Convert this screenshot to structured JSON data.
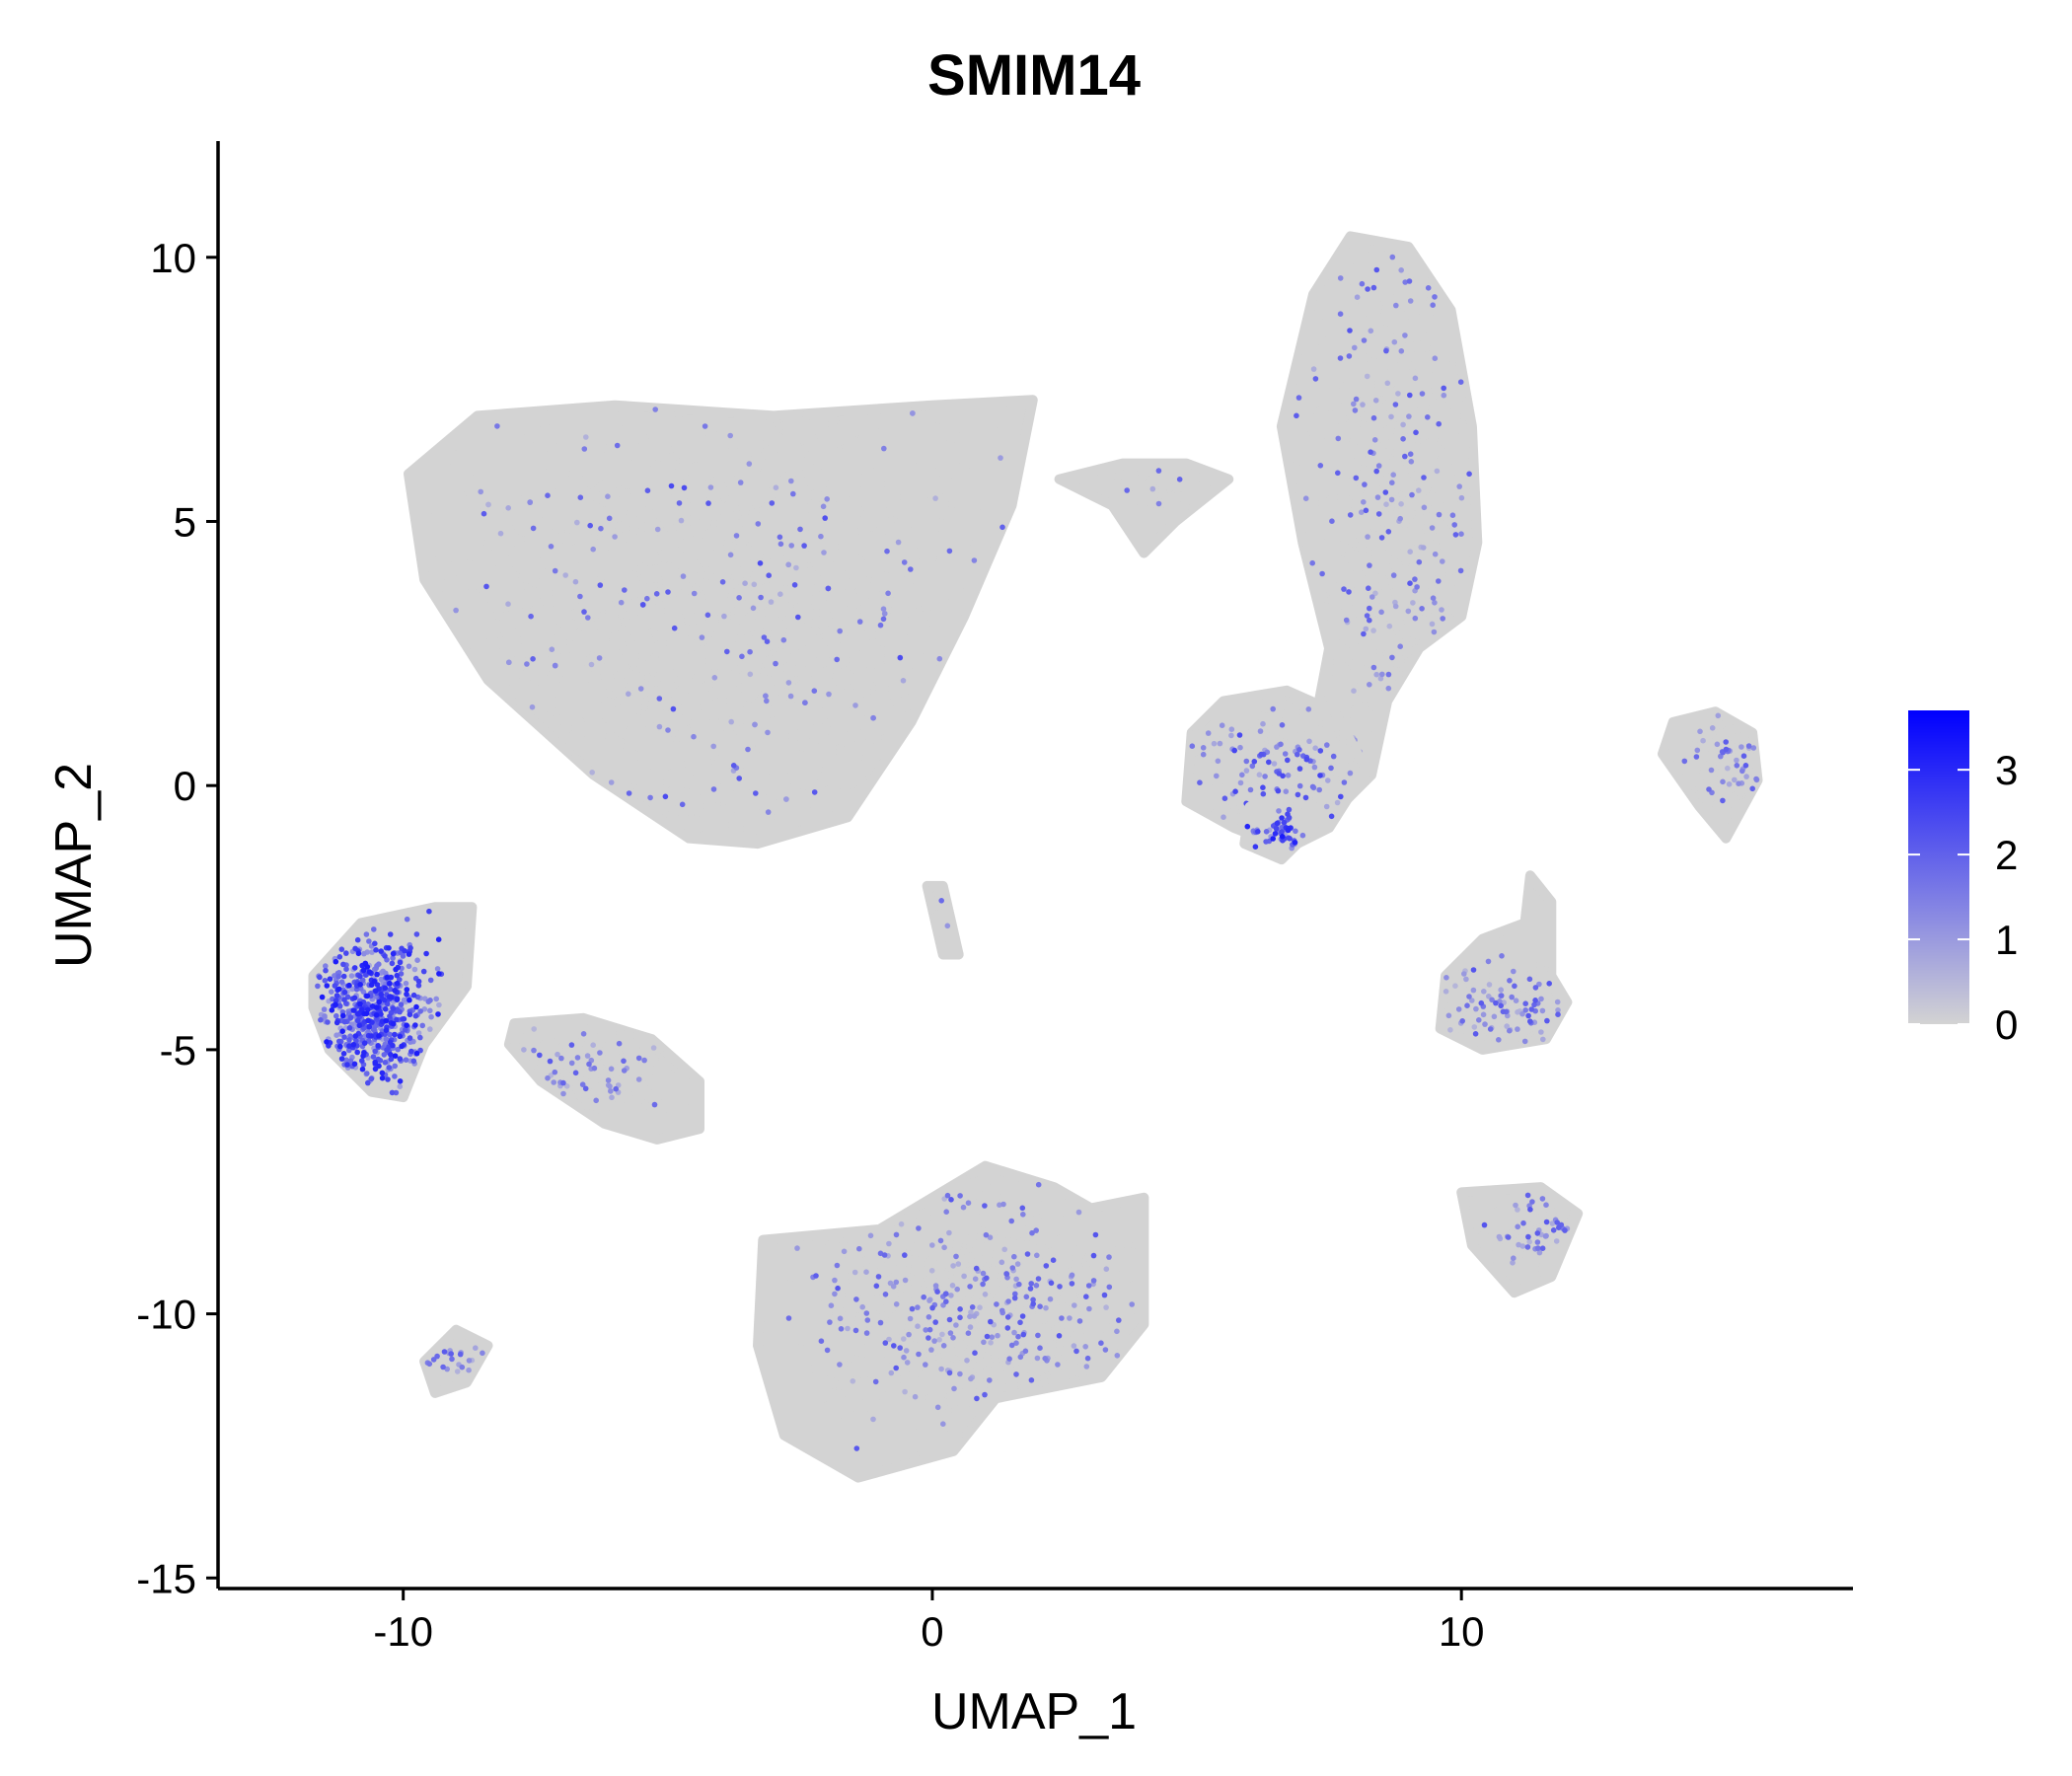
{
  "chart_data": {
    "type": "scatter",
    "title": "SMIM14",
    "xlabel": "UMAP_1",
    "ylabel": "UMAP_2",
    "xlim": [
      -13.5,
      17.4
    ],
    "ylim": [
      -15.2,
      12.2
    ],
    "x_ticks": [
      {
        "value": -10,
        "label": "-10"
      },
      {
        "value": 0,
        "label": "0"
      },
      {
        "value": 10,
        "label": "10"
      }
    ],
    "y_ticks": [
      {
        "value": 10,
        "label": "10"
      },
      {
        "value": 5,
        "label": "5"
      },
      {
        "value": 0,
        "label": "0"
      },
      {
        "value": -5,
        "label": "-5"
      },
      {
        "value": -10,
        "label": "-10"
      },
      {
        "value": -15,
        "label": "-15"
      }
    ],
    "color_scale": {
      "low_color": "#d3d3d3",
      "high_color": "#0000ff",
      "min": 0,
      "max": 3.7,
      "ticks": [
        {
          "value": 3,
          "label": "3"
        },
        {
          "value": 2,
          "label": "2"
        },
        {
          "value": 1,
          "label": "1"
        },
        {
          "value": 0,
          "label": "0"
        }
      ]
    },
    "clusters": [
      {
        "name": "cluster-large-top",
        "center": [
          -4.0,
          3.2
        ],
        "spread": [
          4.6,
          3.6
        ],
        "n": 2400,
        "expr_prob": 0.07,
        "expr_mean": 1.4,
        "shape": [
          [
            -9.9,
            5.9
          ],
          [
            -8.6,
            7.0
          ],
          [
            -6.0,
            7.2
          ],
          [
            -3.0,
            7.0
          ],
          [
            0.0,
            7.2
          ],
          [
            1.9,
            7.3
          ],
          [
            1.5,
            5.3
          ],
          [
            0.6,
            3.2
          ],
          [
            -0.4,
            1.2
          ],
          [
            -1.6,
            -0.6
          ],
          [
            -3.3,
            -1.1
          ],
          [
            -4.6,
            -1.0
          ],
          [
            -6.4,
            0.2
          ],
          [
            -8.4,
            2.0
          ],
          [
            -9.6,
            3.9
          ]
        ]
      },
      {
        "name": "cluster-top-right-tall",
        "center": [
          8.8,
          5.0
        ],
        "spread": [
          1.6,
          5.0
        ],
        "n": 1100,
        "expr_prob": 0.15,
        "expr_mean": 1.3,
        "shape": [
          [
            7.2,
            9.3
          ],
          [
            7.9,
            10.4
          ],
          [
            9.0,
            10.2
          ],
          [
            9.8,
            9.0
          ],
          [
            10.2,
            6.8
          ],
          [
            10.3,
            4.6
          ],
          [
            10.0,
            3.2
          ],
          [
            9.2,
            2.6
          ],
          [
            8.6,
            1.6
          ],
          [
            8.3,
            0.2
          ],
          [
            7.6,
            -0.5
          ],
          [
            7.1,
            0.5
          ],
          [
            7.5,
            2.6
          ],
          [
            7.0,
            4.6
          ],
          [
            6.6,
            6.8
          ]
        ]
      },
      {
        "name": "cluster-center-mid",
        "center": [
          6.5,
          0.4
        ],
        "spread": [
          1.3,
          0.9
        ],
        "n": 500,
        "expr_prob": 0.16,
        "expr_mean": 1.5,
        "shape": [
          [
            4.9,
            1.0
          ],
          [
            5.5,
            1.6
          ],
          [
            6.7,
            1.8
          ],
          [
            7.6,
            1.4
          ],
          [
            8.2,
            0.3
          ],
          [
            7.5,
            -0.8
          ],
          [
            6.7,
            -1.2
          ],
          [
            5.7,
            -0.8
          ],
          [
            4.8,
            -0.3
          ]
        ]
      },
      {
        "name": "cluster-center-mid-tip",
        "center": [
          6.6,
          -0.8
        ],
        "spread": [
          0.5,
          0.4
        ],
        "n": 120,
        "expr_prob": 0.45,
        "expr_mean": 1.9,
        "shape": [
          [
            6.0,
            -0.4
          ],
          [
            6.8,
            -0.3
          ],
          [
            7.1,
            -0.9
          ],
          [
            6.6,
            -1.4
          ],
          [
            5.9,
            -1.1
          ]
        ]
      },
      {
        "name": "cluster-left-mid",
        "center": [
          -10.6,
          -4.3
        ],
        "spread": [
          0.9,
          1.1
        ],
        "n": 700,
        "expr_prob": 0.85,
        "expr_mean": 1.9,
        "shape": [
          [
            -11.7,
            -3.6
          ],
          [
            -10.8,
            -2.6
          ],
          [
            -9.4,
            -2.3
          ],
          [
            -8.7,
            -2.3
          ],
          [
            -8.8,
            -3.8
          ],
          [
            -9.6,
            -4.9
          ],
          [
            -10.0,
            -5.9
          ],
          [
            -10.6,
            -5.8
          ],
          [
            -11.4,
            -5.0
          ],
          [
            -11.7,
            -4.2
          ]
        ]
      },
      {
        "name": "cluster-left-tail",
        "center": [
          -6.5,
          -5.4
        ],
        "spread": [
          1.4,
          0.7
        ],
        "n": 420,
        "expr_prob": 0.1,
        "expr_mean": 1.3,
        "shape": [
          [
            -7.9,
            -4.5
          ],
          [
            -6.6,
            -4.4
          ],
          [
            -5.3,
            -4.8
          ],
          [
            -4.4,
            -5.6
          ],
          [
            -4.4,
            -6.5
          ],
          [
            -5.2,
            -6.7
          ],
          [
            -6.2,
            -6.4
          ],
          [
            -7.4,
            -5.6
          ],
          [
            -8.0,
            -4.9
          ]
        ]
      },
      {
        "name": "cluster-bottom-center",
        "center": [
          0.8,
          -10.0
        ],
        "spread": [
          2.5,
          1.8
        ],
        "n": 1500,
        "expr_prob": 0.16,
        "expr_mean": 1.3,
        "shape": [
          [
            -3.2,
            -8.6
          ],
          [
            -1.0,
            -8.4
          ],
          [
            1.0,
            -7.2
          ],
          [
            2.3,
            -7.6
          ],
          [
            3.0,
            -8.0
          ],
          [
            4.0,
            -7.8
          ],
          [
            4.0,
            -10.2
          ],
          [
            3.2,
            -11.2
          ],
          [
            1.2,
            -11.6
          ],
          [
            0.4,
            -12.6
          ],
          [
            -1.4,
            -13.1
          ],
          [
            -2.8,
            -12.3
          ],
          [
            -3.3,
            -10.6
          ]
        ]
      },
      {
        "name": "cluster-right-mid",
        "center": [
          11.1,
          -4.3
        ],
        "spread": [
          1.4,
          0.7
        ],
        "n": 460,
        "expr_prob": 0.17,
        "expr_mean": 1.3,
        "shape": [
          [
            9.7,
            -3.6
          ],
          [
            10.4,
            -2.9
          ],
          [
            11.2,
            -2.6
          ],
          [
            11.3,
            -1.7
          ],
          [
            11.7,
            -2.2
          ],
          [
            11.7,
            -3.6
          ],
          [
            12.0,
            -4.1
          ],
          [
            11.6,
            -4.8
          ],
          [
            10.4,
            -5.0
          ],
          [
            9.6,
            -4.6
          ]
        ]
      },
      {
        "name": "cluster-far-right",
        "center": [
          15.2,
          0.5
        ],
        "spread": [
          0.7,
          0.8
        ],
        "n": 260,
        "expr_prob": 0.15,
        "expr_mean": 1.3,
        "shape": [
          [
            14.0,
            1.2
          ],
          [
            14.8,
            1.4
          ],
          [
            15.5,
            1.0
          ],
          [
            15.6,
            0.1
          ],
          [
            15.0,
            -1.0
          ],
          [
            14.5,
            -0.4
          ],
          [
            13.8,
            0.6
          ]
        ]
      },
      {
        "name": "cluster-bottom-right",
        "center": [
          11.5,
          -8.5
        ],
        "spread": [
          0.8,
          0.5
        ],
        "n": 220,
        "expr_prob": 0.2,
        "expr_mean": 1.3,
        "shape": [
          [
            10.0,
            -7.7
          ],
          [
            11.5,
            -7.6
          ],
          [
            12.2,
            -8.1
          ],
          [
            11.7,
            -9.3
          ],
          [
            11.0,
            -9.6
          ],
          [
            10.2,
            -8.7
          ]
        ]
      },
      {
        "name": "cluster-bottom-left-small",
        "center": [
          -9.1,
          -10.9
        ],
        "spread": [
          0.4,
          0.3
        ],
        "n": 80,
        "expr_prob": 0.2,
        "expr_mean": 1.3,
        "shape": [
          [
            -9.6,
            -10.9
          ],
          [
            -9.0,
            -10.3
          ],
          [
            -8.4,
            -10.6
          ],
          [
            -8.8,
            -11.3
          ],
          [
            -9.4,
            -11.5
          ]
        ]
      },
      {
        "name": "cluster-tiny-center",
        "center": [
          0.2,
          -2.5
        ],
        "spread": [
          0.2,
          0.5
        ],
        "n": 40,
        "expr_prob": 0.05,
        "expr_mean": 1.2,
        "shape": [
          [
            -0.1,
            -1.9
          ],
          [
            0.2,
            -1.9
          ],
          [
            0.5,
            -3.2
          ],
          [
            0.2,
            -3.2
          ]
        ]
      },
      {
        "name": "cluster-small-top-mid",
        "center": [
          4.3,
          5.7
        ],
        "spread": [
          0.7,
          0.4
        ],
        "n": 100,
        "expr_prob": 0.06,
        "expr_mean": 1.2,
        "shape": [
          [
            2.4,
            5.8
          ],
          [
            3.6,
            6.1
          ],
          [
            4.8,
            6.1
          ],
          [
            5.6,
            5.8
          ],
          [
            4.6,
            5.0
          ],
          [
            4.0,
            4.4
          ],
          [
            3.4,
            5.3
          ]
        ]
      }
    ]
  }
}
